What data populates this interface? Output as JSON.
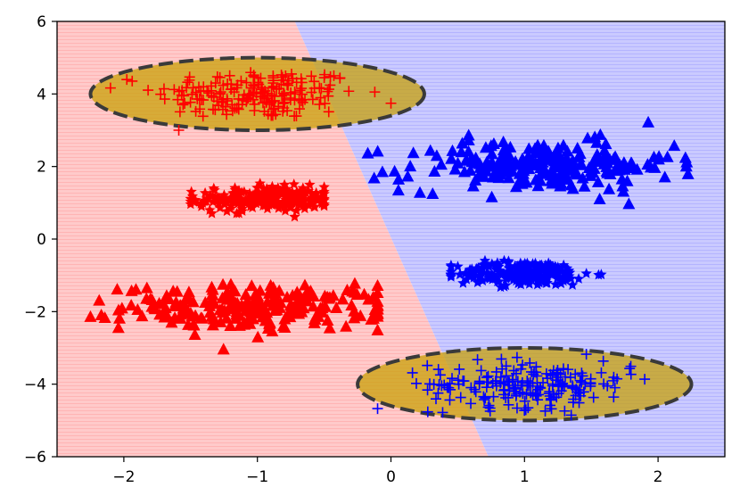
{
  "chart_data": {
    "type": "scatter",
    "title": "",
    "xlabel": "",
    "ylabel": "",
    "xlim": [
      -2.5,
      2.5
    ],
    "ylim": [
      -6,
      6
    ],
    "xticks": [
      -2,
      -1,
      0,
      1,
      2
    ],
    "yticks": [
      -6,
      -4,
      -2,
      0,
      2,
      4,
      6
    ],
    "xtick_labels": [
      "−2",
      "−1",
      "0",
      "1",
      "2"
    ],
    "ytick_labels": [
      "−6",
      "−4",
      "−2",
      "0",
      "2",
      "4",
      "6"
    ],
    "grid": false,
    "legend": "none",
    "colors": {
      "class_a": "#ff0000",
      "class_b": "#0000ff",
      "region_a": "#ffc8c8",
      "region_b": "#c8c8ff",
      "ellipse_fill": "#c8a000",
      "ellipse_edge": "#3a3a3a"
    },
    "decision_boundary": [
      [
        -0.72,
        6
      ],
      [
        0.73,
        -6
      ]
    ],
    "ellipses": [
      {
        "cx": -1.0,
        "cy": 4.0,
        "rx": 1.25,
        "ry": 1.0
      },
      {
        "cx": 1.0,
        "cy": -4.0,
        "rx": 1.25,
        "ry": 1.0
      }
    ],
    "clusters": [
      {
        "color": "class_a",
        "marker": "plus",
        "center": [
          -1.0,
          4.0
        ],
        "spread": [
          0.38,
          0.35
        ],
        "count": 200,
        "x_range": [
          -2.1,
          0.0
        ],
        "y_range": [
          3.0,
          4.9
        ]
      },
      {
        "color": "class_a",
        "marker": "star",
        "center": [
          -0.95,
          1.1
        ],
        "spread": [
          0.25,
          0.17
        ],
        "count": 230,
        "x_range": [
          -1.5,
          -0.5
        ],
        "y_range": [
          0.6,
          1.8
        ]
      },
      {
        "color": "class_a",
        "marker": "triangle",
        "center": [
          -1.0,
          -1.9
        ],
        "spread": [
          0.5,
          0.3
        ],
        "count": 240,
        "x_range": [
          -2.25,
          -0.1
        ],
        "y_range": [
          -3.2,
          -0.6
        ]
      },
      {
        "color": "class_b",
        "marker": "triangle",
        "center": [
          1.1,
          2.0
        ],
        "spread": [
          0.5,
          0.35
        ],
        "count": 230,
        "x_range": [
          -0.5,
          2.35
        ],
        "y_range": [
          0.7,
          3.5
        ]
      },
      {
        "color": "class_b",
        "marker": "star",
        "center": [
          1.0,
          -0.95
        ],
        "spread": [
          0.25,
          0.17
        ],
        "count": 230,
        "x_range": [
          0.45,
          1.6
        ],
        "y_range": [
          -1.5,
          -0.5
        ]
      },
      {
        "color": "class_b",
        "marker": "plus",
        "center": [
          1.05,
          -4.0
        ],
        "spread": [
          0.38,
          0.32
        ],
        "count": 200,
        "x_range": [
          -0.1,
          1.9
        ],
        "y_range": [
          -4.9,
          -2.6
        ]
      }
    ]
  }
}
